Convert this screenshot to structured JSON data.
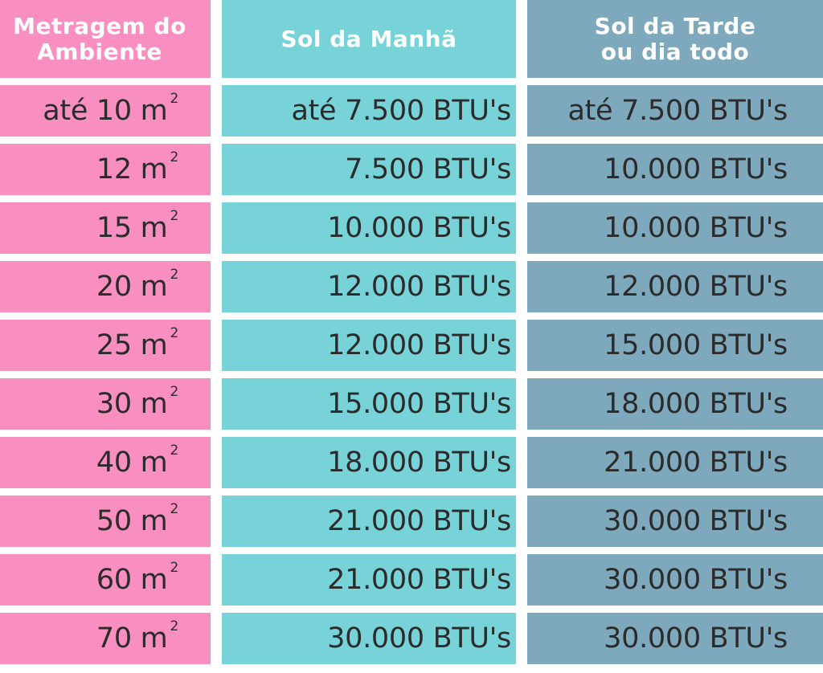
{
  "headers": [
    "Metragem do\nAmbiente",
    "Sol da Manhã",
    "Sol da Tarde\nou dia todo"
  ],
  "area_unit_sup": "2",
  "rows": [
    {
      "area": "até 10 m",
      "morning": "até 7.500 BTU's",
      "afternoon": "até 7.500 BTU's"
    },
    {
      "area": "12 m",
      "morning": "7.500 BTU's",
      "afternoon": "10.000 BTU's"
    },
    {
      "area": "15 m",
      "morning": "10.000 BTU's",
      "afternoon": "10.000 BTU's"
    },
    {
      "area": "20 m",
      "morning": "12.000 BTU's",
      "afternoon": "12.000 BTU's"
    },
    {
      "area": "25 m",
      "morning": "12.000 BTU's",
      "afternoon": "15.000 BTU's"
    },
    {
      "area": "30 m",
      "morning": "15.000 BTU's",
      "afternoon": "18.000 BTU's"
    },
    {
      "area": "40 m",
      "morning": "18.000 BTU's",
      "afternoon": "21.000 BTU's"
    },
    {
      "area": "50 m",
      "morning": "21.000 BTU's",
      "afternoon": "30.000 BTU's"
    },
    {
      "area": "60 m",
      "morning": "21.000 BTU's",
      "afternoon": "30.000 BTU's"
    },
    {
      "area": "70 m",
      "morning": "30.000 BTU's",
      "afternoon": "30.000 BTU's"
    }
  ],
  "colors": {
    "header": "#a88ba0",
    "area_column": "#f98fc0",
    "morning_column": "#78d3d8",
    "afternoon_column": "#7ea8bc",
    "text": "#2b2b2b"
  }
}
